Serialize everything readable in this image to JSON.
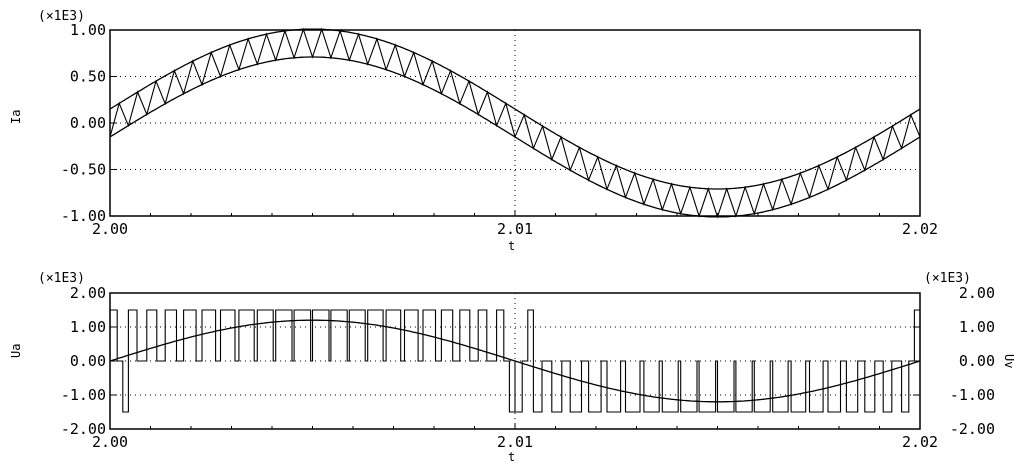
{
  "chart_data": [
    {
      "type": "line",
      "multiplier": "(×1E3)",
      "xlabel": "t",
      "ylabel": "Ia",
      "xlim": [
        2.0,
        2.02
      ],
      "ylim": [
        -1.0,
        1.0
      ],
      "x_ticks": [
        "2.00",
        "2.01",
        "2.02"
      ],
      "y_ticks": [
        "1.00",
        "0.50",
        "0.00",
        "-0.50",
        "-1.00"
      ],
      "grid": "dotted at mid ticks",
      "series": [
        {
          "style": "upper hysteresis band",
          "amplitude": 0.86,
          "offset": 0.15,
          "frequency_hz": 50,
          "phase_start": 0
        },
        {
          "style": "lower hysteresis band",
          "amplitude": 0.86,
          "offset": -0.15,
          "frequency_hz": 50,
          "phase_start": 0
        },
        {
          "style": "sawtooth phase current between bands",
          "switching_cycles": 44
        }
      ]
    },
    {
      "type": "line",
      "multiplier_left": "(×1E3)",
      "multiplier_right": "(×1E3)",
      "xlabel": "t",
      "ylabel_left": "Ua",
      "ylabel_right": "Uv",
      "xlim": [
        2.0,
        2.02
      ],
      "ylim": [
        -2.0,
        2.0
      ],
      "x_ticks": [
        "2.00",
        "2.01",
        "2.02"
      ],
      "y_ticks": [
        "2.00",
        "1.00",
        "0.00",
        "-1.00",
        "-2.00"
      ],
      "grid": "dotted at mid ticks",
      "series": [
        {
          "style": "sinusoidal reference voltage",
          "amplitude": 1.2,
          "frequency_hz": 50
        },
        {
          "style": "switched phase voltage",
          "levels": [
            1.5,
            0,
            -1.5
          ]
        }
      ]
    }
  ]
}
